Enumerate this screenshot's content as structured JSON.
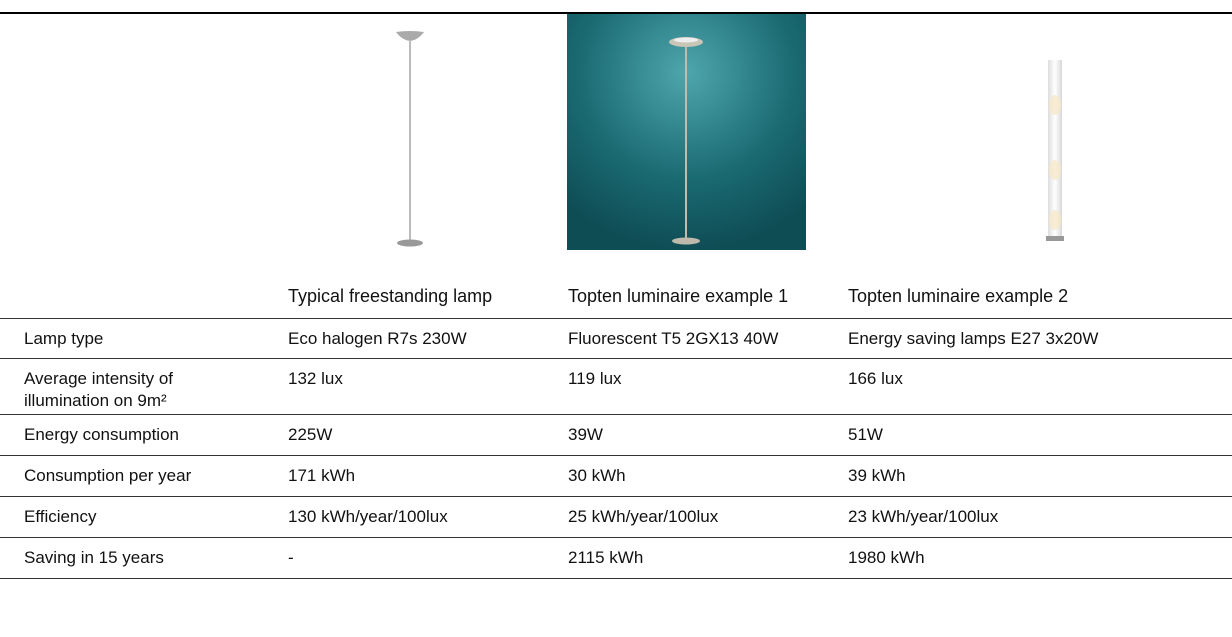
{
  "table": {
    "columns": [
      "Typical freestanding lamp",
      "Topten luminaire example 1",
      "Topten luminaire example 2"
    ],
    "rows": [
      [
        "Lamp type",
        "Eco halogen R7s 230W",
        "Fluorescent T5 2GX13 40W",
        "Energy saving lamps E27 3x20W"
      ],
      [
        "Average intensity of illumination on 9m²",
        "132 lux",
        "119 lux",
        "166 lux"
      ],
      [
        "Energy consumption",
        "225W",
        "39W",
        "51W"
      ],
      [
        "Consumption per year",
        "171 kWh",
        "30 kWh",
        "39 kWh"
      ],
      [
        "Efficiency",
        "130 kWh/year/100lux",
        "25 kWh/year/100lux",
        "23 kWh/year/100lux"
      ],
      [
        "Saving in 15 years",
        "-",
        "2115 kWh",
        "1980 kWh"
      ]
    ]
  }
}
